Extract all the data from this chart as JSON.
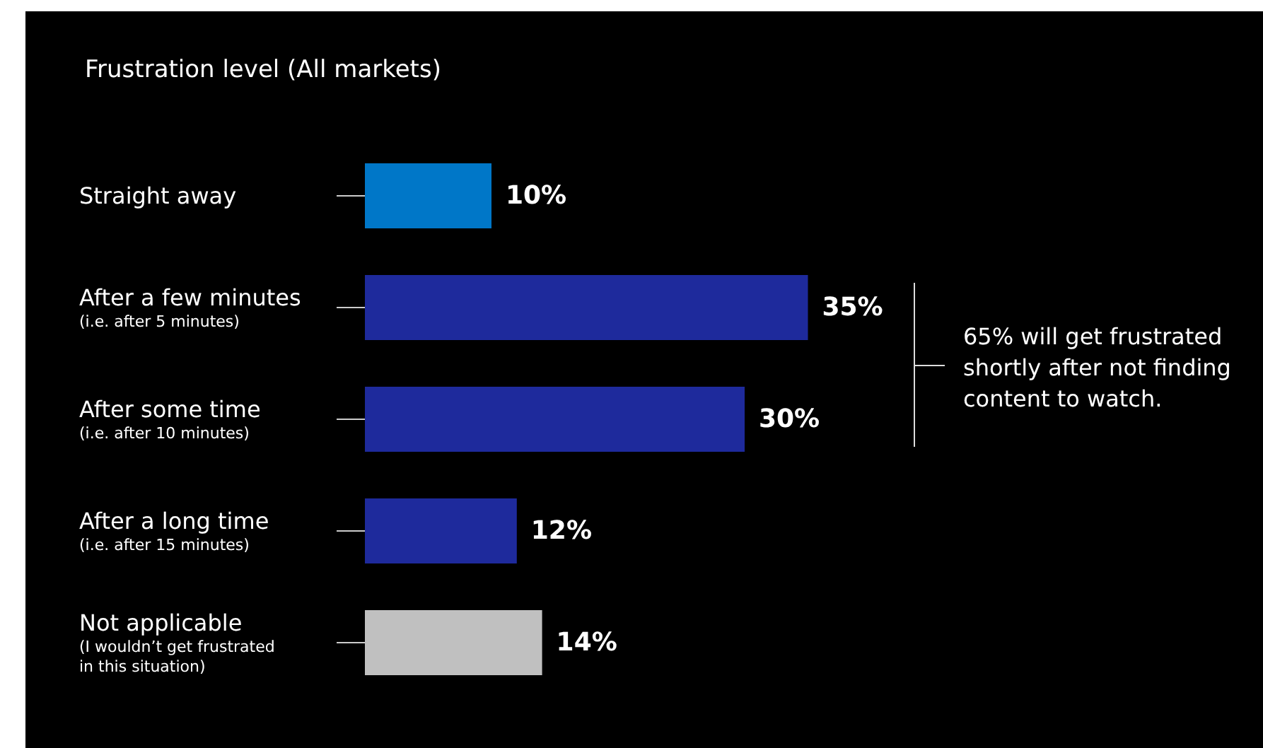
{
  "chart_data": {
    "type": "bar",
    "orientation": "horizontal",
    "title": "Frustration level (All markets)",
    "categories": [
      "Straight away",
      "After a few minutes\n(i.e. after 5 minutes)",
      "After some time\n(i.e. after 10 minutes)",
      "After a long time\n(i.e. after 15 minutes)",
      "Not applicable\n(I wouldn’t get frustrated\nin this situation)"
    ],
    "values": [
      10,
      35,
      30,
      12,
      14
    ],
    "colors": [
      "#0077c8",
      "#1e2a9c",
      "#1e2a9c",
      "#1e2a9c",
      "#c0c0c0"
    ],
    "data_labels": true,
    "value_labels": [
      "10%",
      "35%",
      "30%",
      "12%",
      "14%"
    ],
    "annotations": [
      "65% will get frustrated shortly after not finding content to watch."
    ]
  }
}
